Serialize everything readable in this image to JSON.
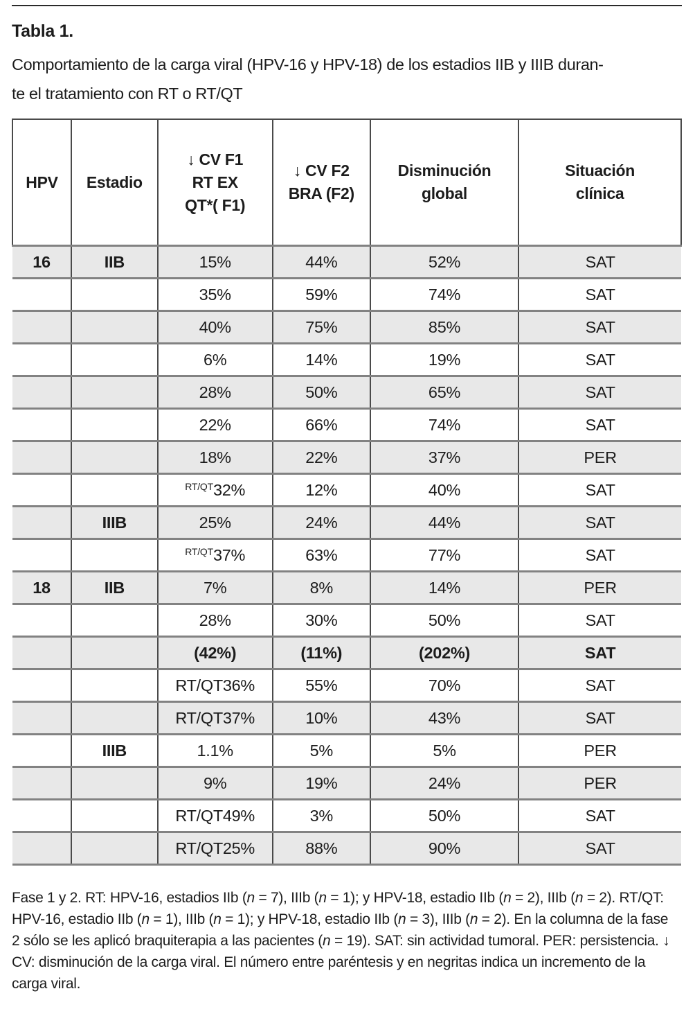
{
  "title": "Tabla 1.",
  "caption_lines": [
    "Comportamiento de la carga viral (HPV-16 y HPV-18) de los estadios IIB y IIIB duran-",
    "te el tratamiento con RT o RT/QT"
  ],
  "table": {
    "columns": [
      {
        "id": "hpv",
        "label": "HPV"
      },
      {
        "id": "estadio",
        "label": "Estadio"
      },
      {
        "id": "cv_f1",
        "label": "↓ CV F1\nRT EX\nQT*( F1)"
      },
      {
        "id": "cv_f2",
        "label": "↓ CV F2\nBRA (F2)"
      },
      {
        "id": "disminucion_global",
        "label": "Disminución\nglobal"
      },
      {
        "id": "situacion_clinica",
        "label": "Situación\nclínica"
      }
    ],
    "rows": [
      {
        "hpv": "16",
        "estadio": "IIB",
        "cv_f1": "15%",
        "cv_f2": "44%",
        "disminucion": "52%",
        "situacion": "SAT"
      },
      {
        "cv_f1": "35%",
        "cv_f2": "59%",
        "disminucion": "74%",
        "situacion": "SAT"
      },
      {
        "cv_f1": "40%",
        "cv_f2": "75%",
        "disminucion": "85%",
        "situacion": "SAT"
      },
      {
        "cv_f1": "6%",
        "cv_f2": "14%",
        "disminucion": "19%",
        "situacion": "SAT"
      },
      {
        "cv_f1": "28%",
        "cv_f2": "50%",
        "disminucion": "65%",
        "situacion": "SAT"
      },
      {
        "cv_f1": "22%",
        "cv_f2": "66%",
        "disminucion": "74%",
        "situacion": "SAT"
      },
      {
        "cv_f1": "18%",
        "cv_f2": "22%",
        "disminucion": "37%",
        "situacion": "PER"
      },
      {
        "cv_f1_sup": "RT/QT",
        "cv_f1": "32%",
        "cv_f2": "12%",
        "disminucion": "40%",
        "situacion": "SAT"
      },
      {
        "estadio": "IIIB",
        "cv_f1": "25%",
        "cv_f2": "24%",
        "disminucion": "44%",
        "situacion": "SAT"
      },
      {
        "cv_f1_sup": "RT/QT",
        "cv_f1": "37%",
        "cv_f2": "63%",
        "disminucion": "77%",
        "situacion": "SAT"
      },
      {
        "hpv": "18",
        "estadio": "IIB",
        "cv_f1": "7%",
        "cv_f2": "8%",
        "disminucion": "14%",
        "situacion": "PER"
      },
      {
        "cv_f1": "28%",
        "cv_f2": "30%",
        "disminucion": "50%",
        "situacion": "SAT"
      },
      {
        "cv_f1": "(42%)",
        "cv_f2": "(11%)",
        "disminucion": "(202%)",
        "situacion": "SAT",
        "bold": true
      },
      {
        "cv_f1": "RT/QT36%",
        "cv_f2": "55%",
        "disminucion": "70%",
        "situacion": "SAT"
      },
      {
        "cv_f1": "RT/QT37%",
        "cv_f2": "10%",
        "disminucion": "43%",
        "situacion": "SAT"
      },
      {
        "estadio": "IIIB",
        "cv_f1": "1.1%",
        "cv_f2": "5%",
        "disminucion": "5%",
        "situacion": "PER"
      },
      {
        "cv_f1": "9%",
        "cv_f2": "19%",
        "disminucion": "24%",
        "situacion": "PER"
      },
      {
        "cv_f1": "RT/QT49%",
        "cv_f2": "3%",
        "disminucion": "50%",
        "situacion": "SAT"
      },
      {
        "cv_f1": "RT/QT25%",
        "cv_f2": "88%",
        "disminucion": "90%",
        "situacion": "SAT"
      }
    ]
  },
  "footnote": {
    "segments": [
      {
        "text": "Fase 1 y 2. RT: HPV-16, estadios IIb ("
      },
      {
        "text": "n",
        "italic": true
      },
      {
        "text": " = 7), IIIb ("
      },
      {
        "text": "n",
        "italic": true
      },
      {
        "text": " = 1); y HPV-18, estadio IIb ("
      },
      {
        "text": "n",
        "italic": true
      },
      {
        "text": " = 2), IIIb ("
      },
      {
        "text": "n",
        "italic": true
      },
      {
        "text": " = 2). RT/QT: HPV-16, estadio IIb ("
      },
      {
        "text": "n",
        "italic": true
      },
      {
        "text": " = 1), IIIb ("
      },
      {
        "text": "n",
        "italic": true
      },
      {
        "text": " = 1); y HPV-18, estadio IIb ("
      },
      {
        "text": "n",
        "italic": true
      },
      {
        "text": " = 3), IIIb ("
      },
      {
        "text": "n",
        "italic": true
      },
      {
        "text": " = 2). En la columna de la fase 2 sólo se les aplicó braquiterapia a las pacientes ("
      },
      {
        "text": "n",
        "italic": true
      },
      {
        "text": " = 19). SAT: sin actividad tumoral. PER: persistencia. ↓ CV: disminución de la carga viral. El número entre paréntesis y en negritas indica un incremento de la carga viral."
      }
    ]
  },
  "colors": {
    "row_shade": "#e8e8e8",
    "grid_gray": "#828282",
    "grid_dark": "#4a4a4a",
    "text": "#1c1c1c"
  }
}
